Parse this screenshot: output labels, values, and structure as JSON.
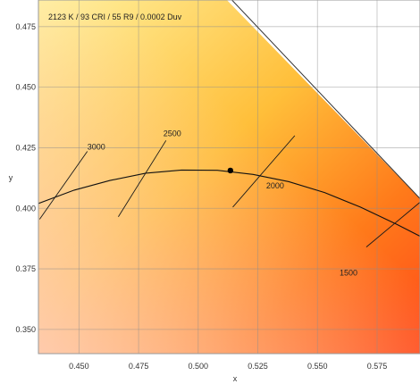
{
  "chart_data": {
    "type": "scatter",
    "title": "2123 K / 93 CRI / 55 R9 / 0.0002 Duv",
    "xlabel": "x",
    "ylabel": "y",
    "xlim": [
      0.433,
      0.593
    ],
    "ylim": [
      0.34,
      0.486
    ],
    "x_ticks": [
      0.45,
      0.475,
      0.5,
      0.525,
      0.55,
      0.575
    ],
    "y_ticks": [
      0.35,
      0.375,
      0.4,
      0.425,
      0.45,
      0.475
    ],
    "grid": true,
    "background": "chromaticity diagram gradient (yellow to red-orange), white outside spectral locus",
    "planckian_locus": {
      "name": "",
      "points": [
        [
          0.433,
          0.402
        ],
        [
          0.448,
          0.4075
        ],
        [
          0.463,
          0.4115
        ],
        [
          0.478,
          0.4145
        ],
        [
          0.493,
          0.4158
        ],
        [
          0.508,
          0.4157
        ],
        [
          0.523,
          0.414
        ],
        [
          0.538,
          0.411
        ],
        [
          0.553,
          0.4065
        ],
        [
          0.568,
          0.4005
        ],
        [
          0.583,
          0.3935
        ],
        [
          0.593,
          0.3885
        ]
      ]
    },
    "isotherms": [
      {
        "label": "3000",
        "from": [
          0.4335,
          0.3955
        ],
        "to": [
          0.4535,
          0.4235
        ]
      },
      {
        "label": "2500",
        "from": [
          0.4665,
          0.3965
        ],
        "to": [
          0.4865,
          0.428
        ]
      },
      {
        "label": "2000",
        "from": [
          0.5145,
          0.4005
        ],
        "to": [
          0.5405,
          0.43
        ]
      },
      {
        "label": "1500",
        "from": [
          0.5705,
          0.384
        ],
        "to": [
          0.593,
          0.4025
        ]
      }
    ],
    "spectral_locus_edge": [
      [
        0.512,
        0.486
      ],
      [
        0.593,
        0.404
      ]
    ],
    "measured_point": {
      "x": 0.5135,
      "y": 0.4156,
      "color": "#000000"
    }
  }
}
